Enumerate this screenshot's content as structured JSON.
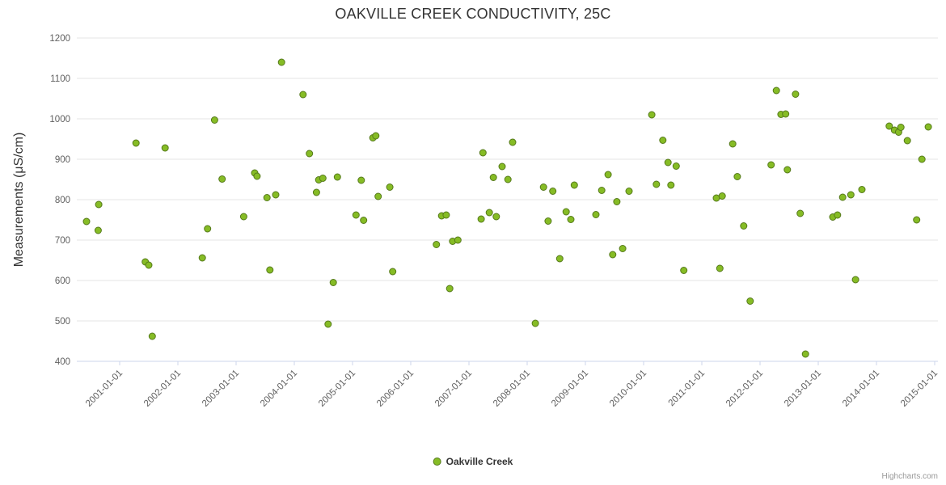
{
  "title": "OAKVILLE CREEK CONDUCTIVITY, 25C",
  "credits": "Highcharts.com",
  "legend": {
    "label": "Oakville Creek"
  },
  "chart_data": {
    "type": "scatter",
    "title": "OAKVILLE CREEK CONDUCTIVITY, 25C",
    "xlabel": "",
    "ylabel": "Measurements (μS/cm)",
    "ylim": [
      400,
      1200
    ],
    "y_ticks": [
      400,
      500,
      600,
      700,
      800,
      900,
      1000,
      1100,
      1200
    ],
    "x_unit": "decimal_year",
    "x_ticks": [
      {
        "year": 2001,
        "label": "2001-01-01"
      },
      {
        "year": 2002,
        "label": "2002-01-01"
      },
      {
        "year": 2003,
        "label": "2003-01-01"
      },
      {
        "year": 2004,
        "label": "2004-01-01"
      },
      {
        "year": 2005,
        "label": "2005-01-01"
      },
      {
        "year": 2006,
        "label": "2006-01-01"
      },
      {
        "year": 2007,
        "label": "2007-01-01"
      },
      {
        "year": 2008,
        "label": "2008-01-01"
      },
      {
        "year": 2009,
        "label": "2009-01-01"
      },
      {
        "year": 2010,
        "label": "2010-01-01"
      },
      {
        "year": 2011,
        "label": "2011-01-01"
      },
      {
        "year": 2012,
        "label": "2012-01-01"
      },
      {
        "year": 2013,
        "label": "2013-01-01"
      },
      {
        "year": 2014,
        "label": "2014-01-01"
      },
      {
        "year": 2015,
        "label": "2015-01-01"
      }
    ],
    "grid": true,
    "legend_position": "bottom-center",
    "colors": {
      "marker_fill": "#86bc25",
      "marker_stroke": "#55791b",
      "gridline": "#e6e6e6",
      "axis_line": "#ccd6eb",
      "tick_label": "#606060"
    },
    "series": [
      {
        "name": "Oakville Creek",
        "color": "#86bc25",
        "points": [
          [
            2000.43,
            746
          ],
          [
            2000.63,
            724
          ],
          [
            2000.64,
            788
          ],
          [
            2001.28,
            940
          ],
          [
            2001.44,
            646
          ],
          [
            2001.5,
            638
          ],
          [
            2001.56,
            462
          ],
          [
            2001.78,
            928
          ],
          [
            2002.42,
            656
          ],
          [
            2002.51,
            728
          ],
          [
            2002.63,
            997
          ],
          [
            2002.76,
            851
          ],
          [
            2003.13,
            758
          ],
          [
            2003.32,
            866
          ],
          [
            2003.36,
            858
          ],
          [
            2003.53,
            805
          ],
          [
            2003.58,
            626
          ],
          [
            2003.68,
            812
          ],
          [
            2003.78,
            1140
          ],
          [
            2004.15,
            1060
          ],
          [
            2004.26,
            914
          ],
          [
            2004.38,
            818
          ],
          [
            2004.42,
            849
          ],
          [
            2004.49,
            853
          ],
          [
            2004.58,
            492
          ],
          [
            2004.67,
            595
          ],
          [
            2004.74,
            856
          ],
          [
            2005.06,
            762
          ],
          [
            2005.15,
            848
          ],
          [
            2005.19,
            749
          ],
          [
            2005.35,
            953
          ],
          [
            2005.4,
            958
          ],
          [
            2005.44,
            808
          ],
          [
            2005.64,
            831
          ],
          [
            2005.69,
            622
          ],
          [
            2006.44,
            689
          ],
          [
            2006.53,
            760
          ],
          [
            2006.61,
            762
          ],
          [
            2006.67,
            580
          ],
          [
            2006.72,
            697
          ],
          [
            2006.81,
            700
          ],
          [
            2007.21,
            752
          ],
          [
            2007.24,
            916
          ],
          [
            2007.35,
            768
          ],
          [
            2007.42,
            855
          ],
          [
            2007.47,
            758
          ],
          [
            2007.57,
            882
          ],
          [
            2007.67,
            850
          ],
          [
            2007.75,
            942
          ],
          [
            2008.14,
            494
          ],
          [
            2008.28,
            831
          ],
          [
            2008.36,
            747
          ],
          [
            2008.44,
            821
          ],
          [
            2008.56,
            654
          ],
          [
            2008.67,
            770
          ],
          [
            2008.75,
            751
          ],
          [
            2008.81,
            836
          ],
          [
            2009.18,
            763
          ],
          [
            2009.28,
            823
          ],
          [
            2009.39,
            862
          ],
          [
            2009.47,
            664
          ],
          [
            2009.54,
            795
          ],
          [
            2009.64,
            679
          ],
          [
            2009.75,
            821
          ],
          [
            2010.14,
            1010
          ],
          [
            2010.22,
            838
          ],
          [
            2010.33,
            947
          ],
          [
            2010.42,
            892
          ],
          [
            2010.47,
            836
          ],
          [
            2010.56,
            883
          ],
          [
            2010.69,
            625
          ],
          [
            2011.25,
            804
          ],
          [
            2011.31,
            630
          ],
          [
            2011.35,
            809
          ],
          [
            2011.53,
            938
          ],
          [
            2011.61,
            857
          ],
          [
            2011.72,
            735
          ],
          [
            2011.83,
            549
          ],
          [
            2012.19,
            886
          ],
          [
            2012.28,
            1070
          ],
          [
            2012.36,
            1011
          ],
          [
            2012.44,
            1012
          ],
          [
            2012.47,
            874
          ],
          [
            2012.61,
            1061
          ],
          [
            2012.69,
            766
          ],
          [
            2012.78,
            418
          ],
          [
            2013.25,
            757
          ],
          [
            2013.33,
            762
          ],
          [
            2013.42,
            806
          ],
          [
            2013.56,
            812
          ],
          [
            2013.64,
            602
          ],
          [
            2013.75,
            825
          ],
          [
            2014.22,
            982
          ],
          [
            2014.31,
            972
          ],
          [
            2014.38,
            967
          ],
          [
            2014.42,
            979
          ],
          [
            2014.53,
            946
          ],
          [
            2014.69,
            750
          ],
          [
            2014.78,
            900
          ],
          [
            2014.89,
            980
          ]
        ]
      }
    ]
  }
}
